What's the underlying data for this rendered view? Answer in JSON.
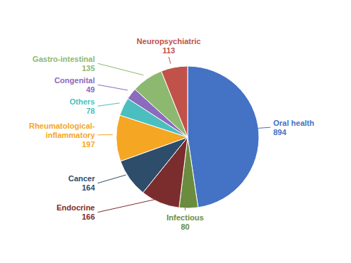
{
  "chart_data": {
    "type": "pie",
    "categories": [
      "Oral health",
      "Infectious",
      "Endocrine",
      "Cancer",
      "Rheumatological-\ninflammatory",
      "Others",
      "Congenital",
      "Gastro-intestinal",
      "Neuropsychiatric"
    ],
    "values": [
      894,
      80,
      166,
      164,
      197,
      78,
      49,
      135,
      113
    ],
    "colors": [
      "#4472C4",
      "#6B8C3E",
      "#7B2D2D",
      "#2E4D6B",
      "#F5A623",
      "#4BBFBF",
      "#8B6BBD",
      "#8DB870",
      "#C0524A"
    ]
  }
}
